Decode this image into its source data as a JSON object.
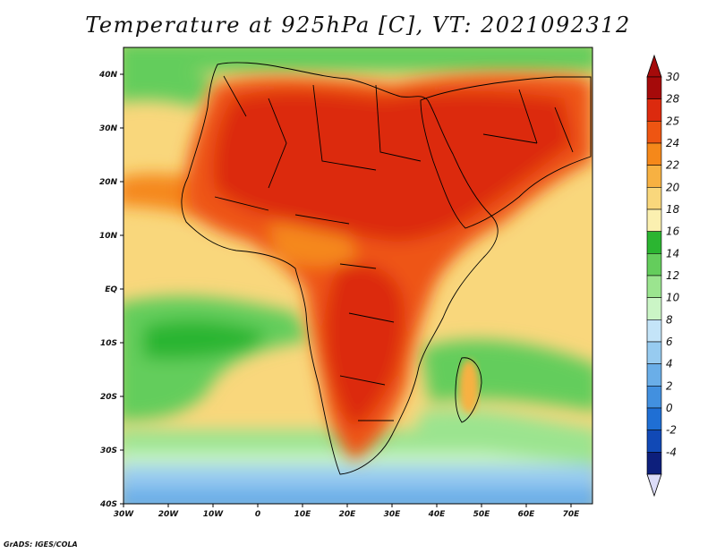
{
  "title": "Temperature at 925hPa [C], VT: 2021092312",
  "credit": "GrADS: IGES/COLA",
  "map": {
    "lon_range": [
      -30,
      75
    ],
    "lat_range": [
      -40,
      45
    ],
    "lon_ticks": [
      "30W",
      "20W",
      "10W",
      "0",
      "10E",
      "20E",
      "30E",
      "40E",
      "50E",
      "60E",
      "70E"
    ],
    "lat_ticks": [
      "40N",
      "30N",
      "20N",
      "10N",
      "EQ",
      "10S",
      "20S",
      "30S",
      "40S"
    ]
  },
  "colorbar": {
    "labels": [
      "30",
      "28",
      "25",
      "24",
      "22",
      "20",
      "18",
      "16",
      "14",
      "12",
      "10",
      "8",
      "6",
      "4",
      "2",
      "0",
      "-2",
      "-4"
    ],
    "colors": [
      "#a50a0a",
      "#dc2a0e",
      "#ee5512",
      "#f5881a",
      "#f7b142",
      "#f9d77c",
      "#fbf0b0",
      "#2bb531",
      "#64cd5c",
      "#9be48f",
      "#cbf5c6",
      "#c4e4f8",
      "#97cbf0",
      "#6aaee8",
      "#4290df",
      "#1f6fd4",
      "#1149b6",
      "#0d1f7c"
    ]
  }
}
